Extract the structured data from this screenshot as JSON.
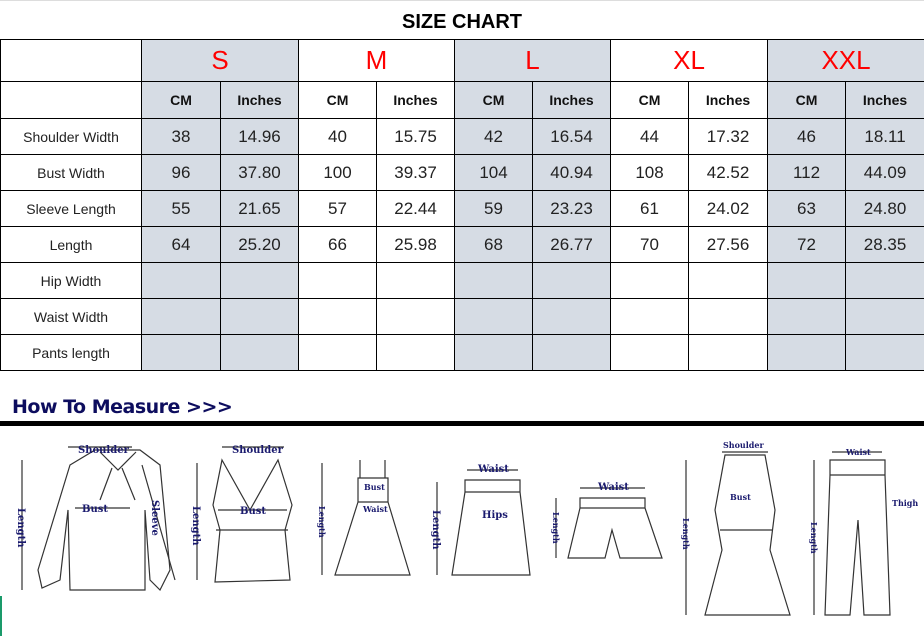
{
  "title": "SIZE CHART",
  "sizes": [
    "S",
    "M",
    "L",
    "XL",
    "XXL"
  ],
  "units": [
    "CM",
    "Inches"
  ],
  "rows": [
    {
      "label": "Shoulder Width",
      "values": [
        "38",
        "14.96",
        "40",
        "15.75",
        "42",
        "16.54",
        "44",
        "17.32",
        "46",
        "18.11"
      ]
    },
    {
      "label": "Bust Width",
      "values": [
        "96",
        "37.80",
        "100",
        "39.37",
        "104",
        "40.94",
        "108",
        "42.52",
        "112",
        "44.09"
      ]
    },
    {
      "label": "Sleeve Length",
      "values": [
        "55",
        "21.65",
        "57",
        "22.44",
        "59",
        "23.23",
        "61",
        "24.02",
        "63",
        "24.80"
      ]
    },
    {
      "label": "Length",
      "values": [
        "64",
        "25.20",
        "66",
        "25.98",
        "68",
        "26.77",
        "70",
        "27.56",
        "72",
        "28.35"
      ]
    },
    {
      "label": "Hip Width",
      "values": [
        "",
        "",
        "",
        "",
        "",
        "",
        "",
        "",
        "",
        ""
      ]
    },
    {
      "label": "Waist Width",
      "values": [
        "",
        "",
        "",
        "",
        "",
        "",
        "",
        "",
        "",
        ""
      ]
    },
    {
      "label": "Pants length",
      "values": [
        "",
        "",
        "",
        "",
        "",
        "",
        "",
        "",
        "",
        ""
      ]
    }
  ],
  "colors": {
    "size_label": "#ff0000",
    "shade": "#d6dce4",
    "howto": "#0d0d5e"
  },
  "howto": {
    "heading": "How To Measure >>>",
    "labels": {
      "shoulder": "Shoulder",
      "bust": "Bust",
      "sleeve": "Sleeve",
      "length": "Length",
      "waist": "Waist",
      "hips": "Hips",
      "thigh": "Thigh"
    }
  }
}
